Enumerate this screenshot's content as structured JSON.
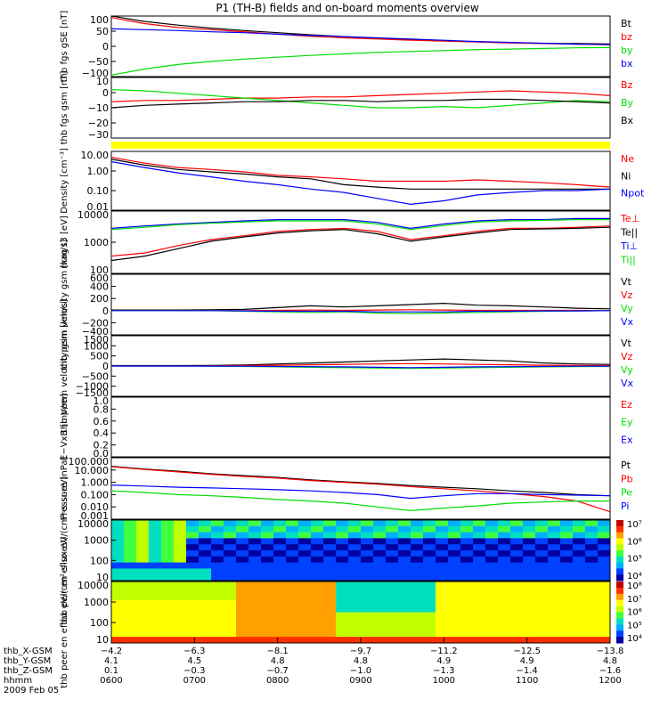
{
  "title": "P1 (TH-B) fields and on-board moments overview",
  "colors": {
    "black": "#000000",
    "red": "#ff0000",
    "green": "#00dd00",
    "blue": "#0000ff",
    "yellow": "#ffff00"
  },
  "chart_data": [
    {
      "type": "line",
      "ylabel": "thb fgs gSE [nT]",
      "yticks": [
        "100",
        "50",
        "0",
        "−50",
        "−100"
      ],
      "ylim": [
        -100,
        100
      ],
      "legend": [
        "Bt",
        "bz",
        "by",
        "bx"
      ],
      "series": [
        {
          "name": "Bt",
          "values": [
            100,
            82,
            70,
            60,
            52,
            45,
            38,
            32,
            27,
            22,
            18,
            15,
            12,
            10,
            9,
            8
          ]
        },
        {
          "name": "bz",
          "values": [
            95,
            75,
            62,
            55,
            48,
            40,
            33,
            28,
            24,
            20,
            17,
            14,
            11,
            9,
            7,
            6
          ]
        },
        {
          "name": "by",
          "values": [
            -95,
            -75,
            -60,
            -50,
            -42,
            -36,
            -30,
            -25,
            -20,
            -17,
            -14,
            -11,
            -9,
            -7,
            -5,
            -4
          ]
        },
        {
          "name": "bx",
          "values": [
            58,
            55,
            52,
            48,
            45,
            40,
            36,
            32,
            28,
            24,
            20,
            16,
            13,
            10,
            7,
            5
          ]
        }
      ]
    },
    {
      "type": "line",
      "ylabel": "thb fgs gsm [nT]",
      "yticks": [
        "10",
        "0",
        "−10",
        "−20",
        "−30"
      ],
      "ylim": [
        -35,
        15
      ],
      "legend": [
        "Bz",
        "By",
        "Bx"
      ],
      "series": [
        {
          "name": "Bz",
          "values": [
            -5,
            -4,
            -4,
            -3,
            -2,
            -2,
            -1,
            -1,
            0,
            1,
            2,
            3,
            4,
            3,
            2,
            0
          ]
        },
        {
          "name": "By",
          "values": [
            5,
            4,
            2,
            0,
            -2,
            -4,
            -6,
            -8,
            -10,
            -10,
            -9,
            -10,
            -8,
            -6,
            -4,
            -5
          ]
        },
        {
          "name": "Bx",
          "values": [
            -10,
            -8,
            -7,
            -6,
            -5,
            -5,
            -4,
            -4,
            -5,
            -4,
            -4,
            -3,
            -3,
            -4,
            -5,
            -6
          ]
        }
      ]
    },
    {
      "type": "line",
      "ylabel": "Density [cm⁻³]",
      "yticks": [
        "10.00",
        "1.00",
        "0.10",
        "0.01"
      ],
      "log": true,
      "ylim": [
        0.01,
        10
      ],
      "legend": [
        "Ne",
        "Ni",
        "Npot"
      ],
      "series": [
        {
          "name": "Ne",
          "values": [
            5,
            2.5,
            1.5,
            1.2,
            0.9,
            0.6,
            0.5,
            0.4,
            0.3,
            0.3,
            0.3,
            0.35,
            0.3,
            0.25,
            0.2,
            0.15
          ]
        },
        {
          "name": "Ni",
          "values": [
            4,
            2,
            1.2,
            0.9,
            0.7,
            0.5,
            0.4,
            0.2,
            0.15,
            0.12,
            0.12,
            0.12,
            0.12,
            0.12,
            0.12,
            0.12
          ]
        },
        {
          "name": "Npot",
          "values": [
            3,
            1.5,
            0.8,
            0.5,
            0.3,
            0.2,
            0.12,
            0.08,
            0.04,
            0.02,
            0.03,
            0.06,
            0.08,
            0.1,
            0.1,
            0.12
          ]
        }
      ]
    },
    {
      "type": "line",
      "ylabel": "mag t3 [eV]",
      "yticks": [
        "10000",
        "1000",
        "100"
      ],
      "log": true,
      "ylim": [
        30,
        10000
      ],
      "legend": [
        "Te⊥",
        "Te||",
        "Ti⊥",
        "Ti||"
      ],
      "series": [
        {
          "name": "Te⊥",
          "values": [
            150,
            200,
            400,
            700,
            1000,
            1500,
            1800,
            2000,
            1500,
            700,
            1000,
            1500,
            2000,
            2000,
            2200,
            2500
          ]
        },
        {
          "name": "Te||",
          "values": [
            100,
            150,
            300,
            600,
            900,
            1300,
            1600,
            1800,
            1200,
            600,
            900,
            1300,
            1800,
            1900,
            2000,
            2200
          ]
        },
        {
          "name": "Ti⊥",
          "values": [
            2000,
            2500,
            3000,
            3500,
            4000,
            4500,
            4500,
            4500,
            3500,
            2000,
            3000,
            4000,
            4500,
            4500,
            5000,
            5000
          ]
        },
        {
          "name": "Ti||",
          "values": [
            1800,
            2200,
            2800,
            3200,
            3600,
            4000,
            4000,
            4000,
            3000,
            1800,
            2600,
            3600,
            4000,
            4200,
            4500,
            4500
          ]
        }
      ]
    },
    {
      "type": "line",
      "ylabel": "thb peim velocity gsm [km/s]",
      "yticks": [
        "600",
        "400",
        "200",
        "0",
        "−200",
        "−400"
      ],
      "ylim": [
        -400,
        600
      ],
      "legend": [
        "Vt",
        "Vz",
        "Vy",
        "Vx"
      ],
      "series": [
        {
          "name": "Vt",
          "values": [
            10,
            10,
            10,
            15,
            20,
            50,
            80,
            60,
            80,
            100,
            120,
            90,
            80,
            60,
            40,
            30
          ]
        },
        {
          "name": "Vz",
          "values": [
            0,
            0,
            0,
            0,
            0,
            5,
            10,
            5,
            10,
            15,
            10,
            5,
            5,
            5,
            5,
            0
          ]
        },
        {
          "name": "Vy",
          "values": [
            0,
            0,
            0,
            0,
            -10,
            -20,
            -30,
            -20,
            -40,
            -50,
            -40,
            -30,
            -20,
            -10,
            -5,
            0
          ]
        },
        {
          "name": "Vx",
          "values": [
            0,
            0,
            0,
            0,
            -5,
            -10,
            -10,
            -10,
            -20,
            -20,
            -20,
            -10,
            -10,
            -5,
            -5,
            0
          ]
        }
      ]
    },
    {
      "type": "line",
      "ylabel": "thb peem velocity gsm [km/s]",
      "yticks": [
        "1500",
        "1000",
        "500",
        "0",
        "−500",
        "−1000",
        "−1500"
      ],
      "ylim": [
        -1500,
        1500
      ],
      "legend": [
        "Vt",
        "Vz",
        "Vy",
        "Vx"
      ],
      "series": [
        {
          "name": "Vt",
          "values": [
            20,
            20,
            20,
            30,
            50,
            100,
            150,
            200,
            250,
            300,
            350,
            300,
            250,
            150,
            100,
            80
          ]
        },
        {
          "name": "Vz",
          "values": [
            0,
            0,
            0,
            10,
            20,
            40,
            60,
            80,
            100,
            120,
            100,
            80,
            60,
            40,
            30,
            20
          ]
        },
        {
          "name": "Vy",
          "values": [
            0,
            0,
            0,
            -10,
            -20,
            -40,
            -60,
            -80,
            -100,
            -120,
            -100,
            -80,
            -60,
            -40,
            -30,
            -20
          ]
        },
        {
          "name": "Vx",
          "values": [
            0,
            0,
            0,
            -5,
            -10,
            -20,
            -30,
            -40,
            -60,
            -80,
            -60,
            -40,
            -30,
            -20,
            -10,
            -10
          ]
        }
      ]
    },
    {
      "type": "line",
      "ylabel": "E−VxB [mV/m]",
      "yticks": [
        "1.0",
        "0.8",
        "0.6",
        "0.4",
        "0.2",
        "0.0"
      ],
      "ylim": [
        0,
        1
      ],
      "legend": [
        "Ez",
        "Ey",
        "Ex"
      ],
      "series": []
    },
    {
      "type": "line",
      "ylabel": "Pressure [nPa]",
      "yticks": [
        "100.000",
        "10.000",
        "1.000",
        "0.100",
        "0.010",
        "0.001"
      ],
      "log": true,
      "ylim": [
        0.001,
        100
      ],
      "legend": [
        "Pt",
        "Pb",
        "Pe",
        "Pi"
      ],
      "series": [
        {
          "name": "Pt",
          "values": [
            20,
            12,
            8,
            5,
            3.5,
            2.5,
            1.6,
            1.1,
            0.8,
            0.55,
            0.4,
            0.3,
            0.2,
            0.15,
            0.1,
            0.08
          ]
        },
        {
          "name": "Pb",
          "values": [
            19,
            11,
            7,
            4.5,
            3,
            2.2,
            1.4,
            1,
            0.7,
            0.45,
            0.3,
            0.2,
            0.12,
            0.07,
            0.03,
            0.004
          ]
        },
        {
          "name": "Pe",
          "values": [
            0.2,
            0.15,
            0.1,
            0.08,
            0.06,
            0.04,
            0.03,
            0.02,
            0.01,
            0.005,
            0.008,
            0.012,
            0.02,
            0.025,
            0.03,
            0.03
          ]
        },
        {
          "name": "Pi",
          "values": [
            0.6,
            0.5,
            0.4,
            0.35,
            0.3,
            0.25,
            0.2,
            0.15,
            0.1,
            0.05,
            0.08,
            0.12,
            0.12,
            0.1,
            0.09,
            0.08
          ]
        }
      ]
    },
    {
      "type": "heatmap",
      "ylabel": "thb peir en eflux eV/(cm²-s-sr-eV)",
      "yticks": [
        "10000",
        "1000",
        "100",
        "10"
      ],
      "colorbar": [
        "10⁷",
        "10⁶",
        "10⁵",
        "10⁴"
      ]
    },
    {
      "type": "heatmap",
      "ylabel": "thb peer en eflux eV/(cm²-s-sr-eV)",
      "yticks": [
        "10000",
        "1000",
        "100",
        "10"
      ],
      "colorbar": [
        "10⁸",
        "10⁷",
        "10⁶",
        "10⁵",
        "10⁴"
      ]
    }
  ],
  "xaxis": {
    "rows": [
      {
        "label": "thb_X-GSM",
        "values": [
          "−4.2",
          "−6.3",
          "−8.1",
          "−9.7",
          "−11.2",
          "−12.5",
          "−13.8"
        ]
      },
      {
        "label": "thb_Y-GSM",
        "values": [
          "4.1",
          "4.5",
          "4.8",
          "4.8",
          "4.9",
          "4.9",
          "4.8"
        ]
      },
      {
        "label": "thb_Z-GSM",
        "values": [
          "0.1",
          "−0.3",
          "−0.7",
          "−1.0",
          "−1.3",
          "−1.4",
          "−1.6"
        ]
      },
      {
        "label": "hhmm",
        "values": [
          "0600",
          "0700",
          "0800",
          "0900",
          "1000",
          "1100",
          "1200"
        ]
      }
    ],
    "date": "2009 Feb 05"
  }
}
